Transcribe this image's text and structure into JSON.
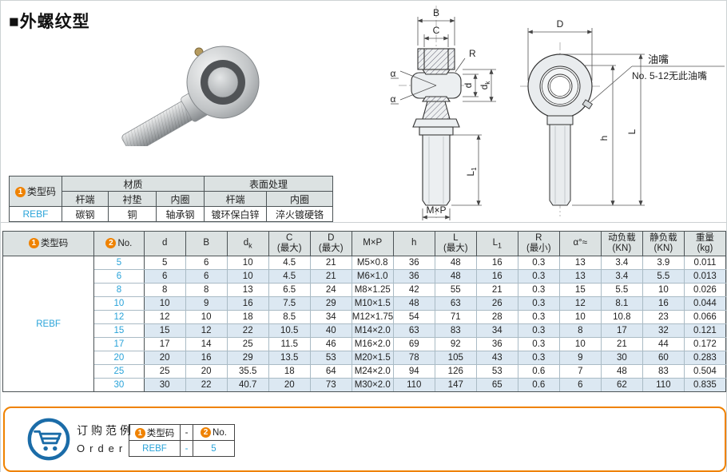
{
  "page": {
    "title_bullet": "■",
    "title": "外螺纹型"
  },
  "colors": {
    "accent_orange": "#ef8200",
    "link_blue": "#29a3d9",
    "header_bg": "#dce2e2",
    "stripe_blue": "#dce8f2",
    "cart_blue": "#1b6ca8"
  },
  "materials_table": {
    "badge1": "1",
    "type_code_label": "类型码",
    "group_material": "材质",
    "group_surface": "表面处理",
    "sub_headers": [
      "杆端",
      "衬垫",
      "内圈",
      "杆端",
      "内圈"
    ],
    "type_code": "REBF",
    "values": [
      "碳钢",
      "铜",
      "轴承钢",
      "镀环保白锌",
      "淬火镀硬铬"
    ]
  },
  "main_table": {
    "type_code": "REBF",
    "headers": [
      {
        "badge": "1",
        "text": "类型码"
      },
      {
        "badge": "2",
        "text": "No."
      },
      {
        "text": "d"
      },
      {
        "text": "B"
      },
      {
        "text": "d",
        "sub": "k"
      },
      {
        "text": "C",
        "line2": "(最大)"
      },
      {
        "text": "D",
        "line2": "(最大)"
      },
      {
        "text": "M×P"
      },
      {
        "text": "h"
      },
      {
        "text": "L",
        "line2": "(最大)"
      },
      {
        "text": "L",
        "sub": "1"
      },
      {
        "text": "R",
        "line2": "(最小)"
      },
      {
        "text": "α°≈"
      },
      {
        "text": "动负载",
        "line2": "(KN)"
      },
      {
        "text": "静负载",
        "line2": "(KN)"
      },
      {
        "text": "重量",
        "line2": "(kg)"
      }
    ],
    "rows": [
      [
        "5",
        "5",
        "6",
        "10",
        "4.5",
        "21",
        "M5×0.8",
        "36",
        "48",
        "16",
        "0.3",
        "13",
        "3.4",
        "3.9",
        "0.011"
      ],
      [
        "6",
        "6",
        "6",
        "10",
        "4.5",
        "21",
        "M6×1.0",
        "36",
        "48",
        "16",
        "0.3",
        "13",
        "3.4",
        "5.5",
        "0.013"
      ],
      [
        "8",
        "8",
        "8",
        "13",
        "6.5",
        "24",
        "M8×1.25",
        "42",
        "55",
        "21",
        "0.3",
        "15",
        "5.5",
        "10",
        "0.026"
      ],
      [
        "10",
        "10",
        "9",
        "16",
        "7.5",
        "29",
        "M10×1.5",
        "48",
        "63",
        "26",
        "0.3",
        "12",
        "8.1",
        "16",
        "0.044"
      ],
      [
        "12",
        "12",
        "10",
        "18",
        "8.5",
        "34",
        "M12×1.75",
        "54",
        "71",
        "28",
        "0.3",
        "10",
        "10.8",
        "23",
        "0.066"
      ],
      [
        "15",
        "15",
        "12",
        "22",
        "10.5",
        "40",
        "M14×2.0",
        "63",
        "83",
        "34",
        "0.3",
        "8",
        "17",
        "32",
        "0.121"
      ],
      [
        "17",
        "17",
        "14",
        "25",
        "11.5",
        "46",
        "M16×2.0",
        "69",
        "92",
        "36",
        "0.3",
        "10",
        "21",
        "44",
        "0.172"
      ],
      [
        "20",
        "20",
        "16",
        "29",
        "13.5",
        "53",
        "M20×1.5",
        "78",
        "105",
        "43",
        "0.3",
        "9",
        "30",
        "60",
        "0.283"
      ],
      [
        "25",
        "25",
        "20",
        "35.5",
        "18",
        "64",
        "M24×2.0",
        "94",
        "126",
        "53",
        "0.6",
        "7",
        "48",
        "83",
        "0.504"
      ],
      [
        "30",
        "30",
        "22",
        "40.7",
        "20",
        "73",
        "M30×2.0",
        "110",
        "147",
        "65",
        "0.6",
        "6",
        "62",
        "110",
        "0.835"
      ]
    ]
  },
  "drawings": {
    "left": {
      "dim_B": "B",
      "dim_C": "C",
      "dim_R": "R",
      "dim_d": "d",
      "dim_dk_main": "d",
      "dim_dk_sub": "k",
      "dim_alpha": "α",
      "dim_L1_main": "L",
      "dim_L1_sub": "1",
      "dim_MxP": "M×P"
    },
    "right": {
      "dim_D": "D",
      "dim_h": "h",
      "dim_L": "L",
      "nipple_label": "油嘴",
      "nipple_note": "No. 5-12无此油嘴"
    }
  },
  "order_section": {
    "title_cn": "订购范例",
    "title_en": "Order",
    "badge1": "1",
    "badge2": "2",
    "header_code": "类型码",
    "header_dash": "-",
    "header_no": "No.",
    "row": {
      "code": "REBF",
      "dash": "-",
      "no": "5"
    }
  }
}
